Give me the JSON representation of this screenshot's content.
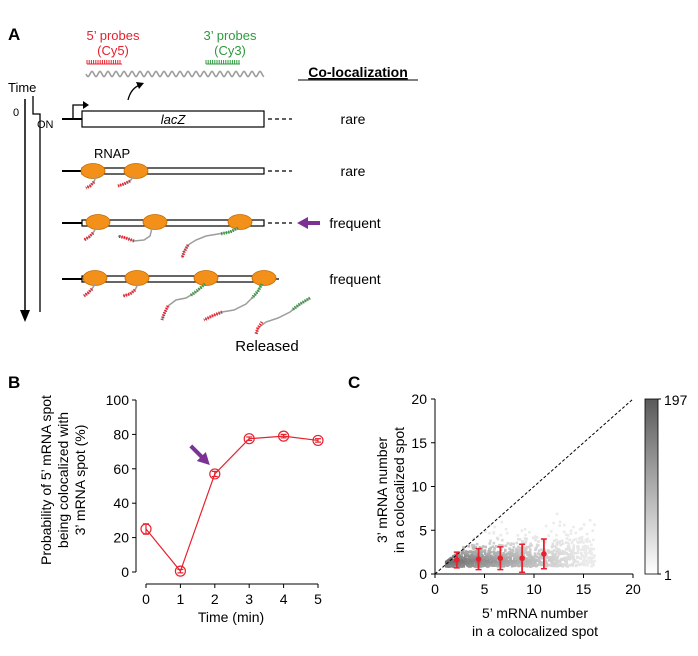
{
  "colors": {
    "red": "#e8212d",
    "green": "#2e9a3e",
    "purple": "#7b3294",
    "rnap": "#f39019",
    "rnap_edge": "#c46a00",
    "line": "#231f20",
    "mrna": "#9d9d9d"
  },
  "panelA": {
    "label": "A",
    "probe5_line1": "5’ probes",
    "probe5_line2": "(Cy5)",
    "probe3_line1": "3’ probes",
    "probe3_line2": "(Cy3)",
    "colocalization_header": "Co-localization",
    "time_label": "Time",
    "zero_label": "0",
    "on_label": "ON",
    "gene_label": "lacZ",
    "rnap_label": "RNAP",
    "released_label": "Released",
    "rows": [
      "rare",
      "rare",
      "frequent",
      "frequent"
    ]
  },
  "panelB": {
    "label": "B",
    "ylabel_lines": [
      "Probability of 5’ mRNA spot",
      "being colocalized with",
      "3’ mRNA spot (%)"
    ],
    "xlabel": "Time (min)"
  },
  "panelC": {
    "label": "C",
    "ylabel_lines": [
      "3’ mRNA number",
      "in a colocalized spot"
    ],
    "xlabel_lines": [
      "5’ mRNA number",
      "in a colocalized spot"
    ],
    "colorbar_max": "197",
    "colorbar_min": "1"
  },
  "chart_data": [
    {
      "type": "line",
      "panel": "B",
      "title": "",
      "xlabel": "Time (min)",
      "ylabel": "Probability of 5’ mRNA spot being colocalized with 3’ mRNA spot (%)",
      "x": [
        0,
        1,
        2,
        3,
        4,
        5
      ],
      "series": [
        {
          "name": "colocalization",
          "values": [
            25,
            0.5,
            57,
            77.5,
            79,
            76.5
          ],
          "errors": [
            3,
            1,
            1.5,
            1,
            1,
            1
          ]
        }
      ],
      "xlim": [
        0,
        5
      ],
      "ylim": [
        0,
        100
      ],
      "xticks": [
        "0",
        "1",
        "2",
        "3",
        "4",
        "5"
      ],
      "yticks": [
        "0",
        "20",
        "40",
        "60",
        "80",
        "100"
      ],
      "annotation": "arrow pointing to t = 2 min",
      "grid": false
    },
    {
      "type": "scatter",
      "panel": "C",
      "title": "",
      "xlabel": "5’ mRNA number in a colocalized spot",
      "ylabel": "3’ mRNA number in a colocalized spot",
      "xlim": [
        0,
        20
      ],
      "ylim": [
        0,
        20
      ],
      "xticks": [
        "0",
        "5",
        "10",
        "15",
        "20"
      ],
      "yticks": [
        "0",
        "5",
        "10",
        "15",
        "20"
      ],
      "diagonal": "y = x (dashed)",
      "colorbar_range": [
        1,
        197
      ],
      "binned_means": {
        "x": [
          2.2,
          4.4,
          6.6,
          8.8,
          11
        ],
        "y": [
          1.6,
          1.7,
          1.8,
          1.8,
          2.3
        ],
        "errors": [
          0.9,
          1.2,
          1.3,
          1.6,
          1.7
        ]
      },
      "density_hotspots": [
        {
          "x": 2,
          "y": 1.5,
          "weight": 1.0
        },
        {
          "x": 4,
          "y": 1.5,
          "weight": 0.9
        },
        {
          "x": 6,
          "y": 1.6,
          "weight": 0.75
        },
        {
          "x": 8,
          "y": 1.6,
          "weight": 0.55
        },
        {
          "x": 10,
          "y": 1.7,
          "weight": 0.4
        },
        {
          "x": 12,
          "y": 1.8,
          "weight": 0.25
        }
      ]
    }
  ]
}
